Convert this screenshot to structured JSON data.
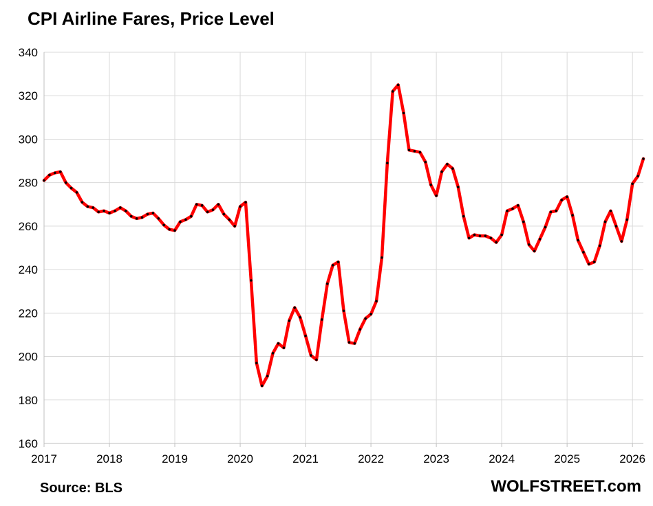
{
  "chart_data": {
    "type": "line",
    "title": "CPI Airline Fares, Price Level",
    "source": "Source: BLS",
    "brand": "WOLFSTREET.com",
    "xlabel": "",
    "ylabel": "",
    "ylim": [
      160,
      340
    ],
    "yticks": [
      160,
      180,
      200,
      220,
      240,
      260,
      280,
      300,
      320,
      340
    ],
    "xlim": [
      "2017-01",
      "2026-03"
    ],
    "xticks": [
      "2017",
      "2018",
      "2019",
      "2020",
      "2021",
      "2022",
      "2023",
      "2024",
      "2025",
      "2026"
    ],
    "grid": true,
    "legend": "none",
    "colors": {
      "line": "#ff0000",
      "markers": "#000000",
      "grid": "#d9d9d9",
      "axis": "#bfbfbf"
    },
    "series": [
      {
        "x": [
          "2017-01",
          "2017-02",
          "2017-03",
          "2017-04",
          "2017-05",
          "2017-06",
          "2017-07",
          "2017-08",
          "2017-09",
          "2017-10",
          "2017-11",
          "2017-12",
          "2018-01",
          "2018-02",
          "2018-03",
          "2018-04",
          "2018-05",
          "2018-06",
          "2018-07",
          "2018-08",
          "2018-09",
          "2018-10",
          "2018-11",
          "2018-12",
          "2019-01",
          "2019-02",
          "2019-03",
          "2019-04",
          "2019-05",
          "2019-06",
          "2019-07",
          "2019-08",
          "2019-09",
          "2019-10",
          "2019-11",
          "2019-12",
          "2020-01",
          "2020-02",
          "2020-03",
          "2020-04",
          "2020-05",
          "2020-06",
          "2020-07",
          "2020-08",
          "2020-09",
          "2020-10",
          "2020-11",
          "2020-12",
          "2021-01",
          "2021-02",
          "2021-03",
          "2021-04",
          "2021-05",
          "2021-06",
          "2021-07",
          "2021-08",
          "2021-09",
          "2021-10",
          "2021-11",
          "2021-12",
          "2022-01",
          "2022-02",
          "2022-03",
          "2022-04",
          "2022-05",
          "2022-06",
          "2022-07",
          "2022-08",
          "2022-09",
          "2022-10",
          "2022-11",
          "2022-12",
          "2023-01",
          "2023-02",
          "2023-03",
          "2023-04",
          "2023-05",
          "2023-06",
          "2023-07",
          "2023-08",
          "2023-09",
          "2023-10",
          "2023-11",
          "2023-12",
          "2024-01",
          "2024-02",
          "2024-03",
          "2024-04",
          "2024-05",
          "2024-06",
          "2024-07",
          "2024-08",
          "2024-09",
          "2024-10",
          "2024-11",
          "2024-12",
          "2025-01",
          "2025-02",
          "2025-03",
          "2025-04",
          "2025-05",
          "2025-06",
          "2025-07",
          "2025-08",
          "2025-09",
          "2025-10",
          "2025-11",
          "2025-12",
          "2026-01",
          "2026-02",
          "2026-03"
        ],
        "values": [
          281,
          283.5,
          284.5,
          285,
          280,
          277.5,
          275.5,
          271,
          269,
          268.5,
          266.5,
          267,
          266,
          267,
          268.5,
          267,
          264.5,
          263.5,
          264,
          265.5,
          266,
          263.5,
          260.5,
          258.5,
          258,
          262,
          263,
          264.5,
          270,
          269.5,
          266.5,
          267.5,
          270,
          265.5,
          263,
          260,
          269,
          271,
          235,
          197,
          186.5,
          191,
          201.5,
          206,
          204,
          216.5,
          222.5,
          218,
          209.5,
          200.5,
          198.5,
          217,
          233.5,
          242,
          243.5,
          221,
          206.5,
          206,
          212.5,
          217.5,
          219.5,
          225.5,
          245.5,
          289,
          322,
          325,
          312,
          295,
          294.5,
          294,
          289.5,
          279,
          274,
          285,
          288.5,
          286.5,
          278,
          264.5,
          254.5,
          256,
          255.5,
          255.5,
          254.5,
          252.5,
          256,
          267,
          268,
          269.5,
          262,
          251.5,
          248.5,
          254,
          259.5,
          266.5,
          267,
          272,
          273.5,
          265,
          253.5,
          248,
          242.5,
          243.5,
          251,
          262,
          267,
          260,
          253,
          263,
          279.5,
          283,
          291
        ]
      }
    ]
  }
}
